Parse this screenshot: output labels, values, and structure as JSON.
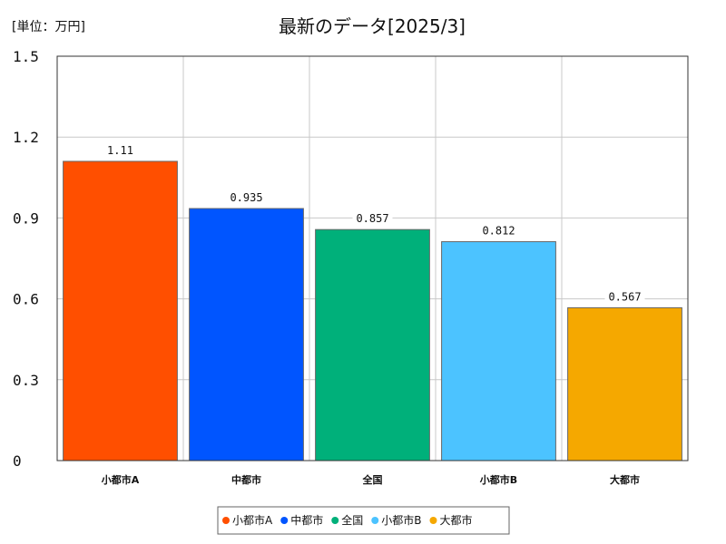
{
  "chart_data": {
    "type": "bar",
    "title": "最新のデータ[2025/3]",
    "unit_label": "[単位：万円]",
    "categories": [
      "小都市A",
      "中都市",
      "全国",
      "小都市B",
      "大都市"
    ],
    "values": [
      1.11,
      0.935,
      0.857,
      0.812,
      0.567
    ],
    "value_labels": [
      "1.11",
      "0.935",
      "0.857",
      "0.812",
      "0.567"
    ],
    "colors": [
      "#ff4f00",
      "#0055ff",
      "#00b07a",
      "#4cc3ff",
      "#f5a800"
    ],
    "ylim": [
      0,
      1.5
    ],
    "yticks": [
      0,
      0.3,
      0.6,
      0.9,
      1.2,
      1.5
    ],
    "ytick_labels": [
      "0",
      "0.3",
      "0.6",
      "0.9",
      "1.2",
      "1.5"
    ],
    "grid": true,
    "legend_position": "bottom-center",
    "xlabel": "",
    "ylabel": ""
  }
}
